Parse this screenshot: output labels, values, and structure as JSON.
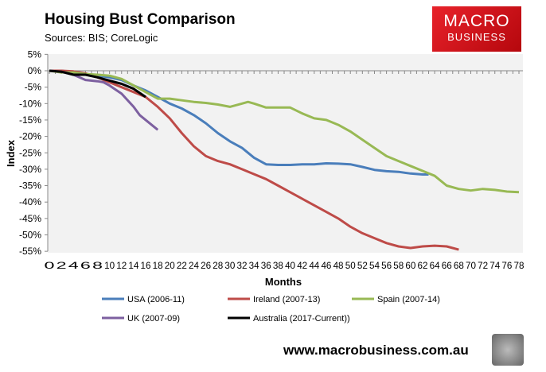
{
  "header": {
    "title": "Housing Bust Comparison",
    "subtitle": "Sources: BIS; CoreLogic"
  },
  "logo": {
    "line1": "MACRO",
    "line2": "BUSINESS"
  },
  "footer": {
    "url": "www.macrobusiness.com.au"
  },
  "chart_data": {
    "type": "line",
    "title": "Housing Bust Comparison",
    "xlabel": "Months",
    "ylabel": "Index",
    "xlim": [
      0,
      78
    ],
    "ylim": [
      -55,
      5
    ],
    "xticks": [
      0,
      2,
      4,
      6,
      8,
      10,
      12,
      14,
      16,
      18,
      20,
      22,
      24,
      26,
      28,
      30,
      32,
      34,
      36,
      38,
      40,
      42,
      44,
      46,
      48,
      50,
      52,
      54,
      56,
      58,
      60,
      62,
      64,
      66,
      68,
      70,
      72,
      74,
      76,
      78
    ],
    "yticks": [
      5,
      0,
      -5,
      -10,
      -15,
      -20,
      -25,
      -30,
      -35,
      -40,
      -45,
      -50,
      -55
    ],
    "ytick_labels": [
      "5%",
      "0%",
      "-5%",
      "-10%",
      "-15%",
      "-20%",
      "-25%",
      "-30%",
      "-35%",
      "-40%",
      "-45%",
      "-50%",
      "-55%"
    ],
    "grid": false,
    "legend": "bottom",
    "series": [
      {
        "name": "USA (2006-11)",
        "color": "#4a7ebb",
        "x": [
          0,
          2,
          4,
          6,
          8,
          10,
          12,
          14,
          16,
          18,
          20,
          22,
          24,
          26,
          28,
          30,
          32,
          34,
          36,
          38,
          40,
          42,
          44,
          46,
          48,
          50,
          52,
          54,
          56,
          58,
          60,
          62,
          63
        ],
        "values": [
          0,
          0,
          -0.5,
          -1,
          -1.5,
          -2,
          -2.8,
          -4.5,
          -6,
          -8,
          -10,
          -11.5,
          -13.5,
          -16,
          -19,
          -21.5,
          -23.5,
          -26.5,
          -28.5,
          -28.7,
          -28.7,
          -28.5,
          -28.5,
          -28.2,
          -28.3,
          -28.5,
          -29.3,
          -30.2,
          -30.6,
          -30.8,
          -31.3,
          -31.6,
          -31.6
        ]
      },
      {
        "name": "Ireland (2007-13)",
        "color": "#be4b48",
        "x": [
          0,
          2,
          4,
          6,
          8,
          10,
          12,
          14,
          16,
          18,
          20,
          22,
          24,
          25,
          26,
          28,
          30,
          32,
          34,
          36,
          38,
          40,
          42,
          44,
          46,
          48,
          50,
          52,
          54,
          56,
          58,
          60,
          62,
          64,
          66,
          68
        ],
        "values": [
          0,
          0,
          -0.2,
          -0.8,
          -2,
          -3.5,
          -5,
          -6.5,
          -8,
          -11,
          -14.5,
          -19,
          -23,
          -24.5,
          -26,
          -27.5,
          -28.5,
          -30,
          -31.5,
          -33,
          -35,
          -37,
          -39,
          -41,
          -43,
          -45,
          -47.5,
          -49.5,
          -51,
          -52.5,
          -53.5,
          -54,
          -53.5,
          -53.3,
          -53.5,
          -54.5
        ]
      },
      {
        "name": "Spain (2007-14)",
        "color": "#98b954",
        "x": [
          0,
          2,
          4,
          6,
          8,
          10,
          12,
          14,
          16,
          18,
          20,
          22,
          24,
          26,
          28,
          30,
          32,
          33,
          34,
          36,
          38,
          40,
          42,
          44,
          46,
          48,
          50,
          52,
          54,
          56,
          58,
          60,
          62,
          64,
          66,
          68,
          70,
          72,
          74,
          76,
          78
        ],
        "values": [
          0,
          -0.5,
          -0.5,
          -1,
          -1.2,
          -1.5,
          -2.5,
          -4.5,
          -6.5,
          -8.5,
          -8.5,
          -9,
          -9.5,
          -9.8,
          -10.3,
          -11,
          -10,
          -9.5,
          -10,
          -11.2,
          -11.2,
          -11.2,
          -13,
          -14.5,
          -15,
          -16.5,
          -18.5,
          -21,
          -23.5,
          -26,
          -27.5,
          -29,
          -30.5,
          -32,
          -35,
          -36,
          -36.5,
          -36,
          -36.3,
          -36.8,
          -37
        ]
      },
      {
        "name": "UK (2007-09)",
        "color": "#7d60a0",
        "x": [
          0,
          2,
          4,
          6,
          8,
          9,
          10,
          12,
          14,
          15,
          16,
          18
        ],
        "values": [
          0,
          -0.3,
          -1.2,
          -2.8,
          -3.2,
          -3.5,
          -4.5,
          -7,
          -11,
          -13.5,
          -15,
          -18
        ]
      },
      {
        "name": "Australia (2017-Current))",
        "color": "#000000",
        "x": [
          0,
          2,
          4,
          6,
          8,
          10,
          12,
          14,
          16
        ],
        "values": [
          0,
          -0.3,
          -1.2,
          -1.2,
          -2,
          -3,
          -4,
          -5.5,
          -8
        ]
      }
    ]
  }
}
